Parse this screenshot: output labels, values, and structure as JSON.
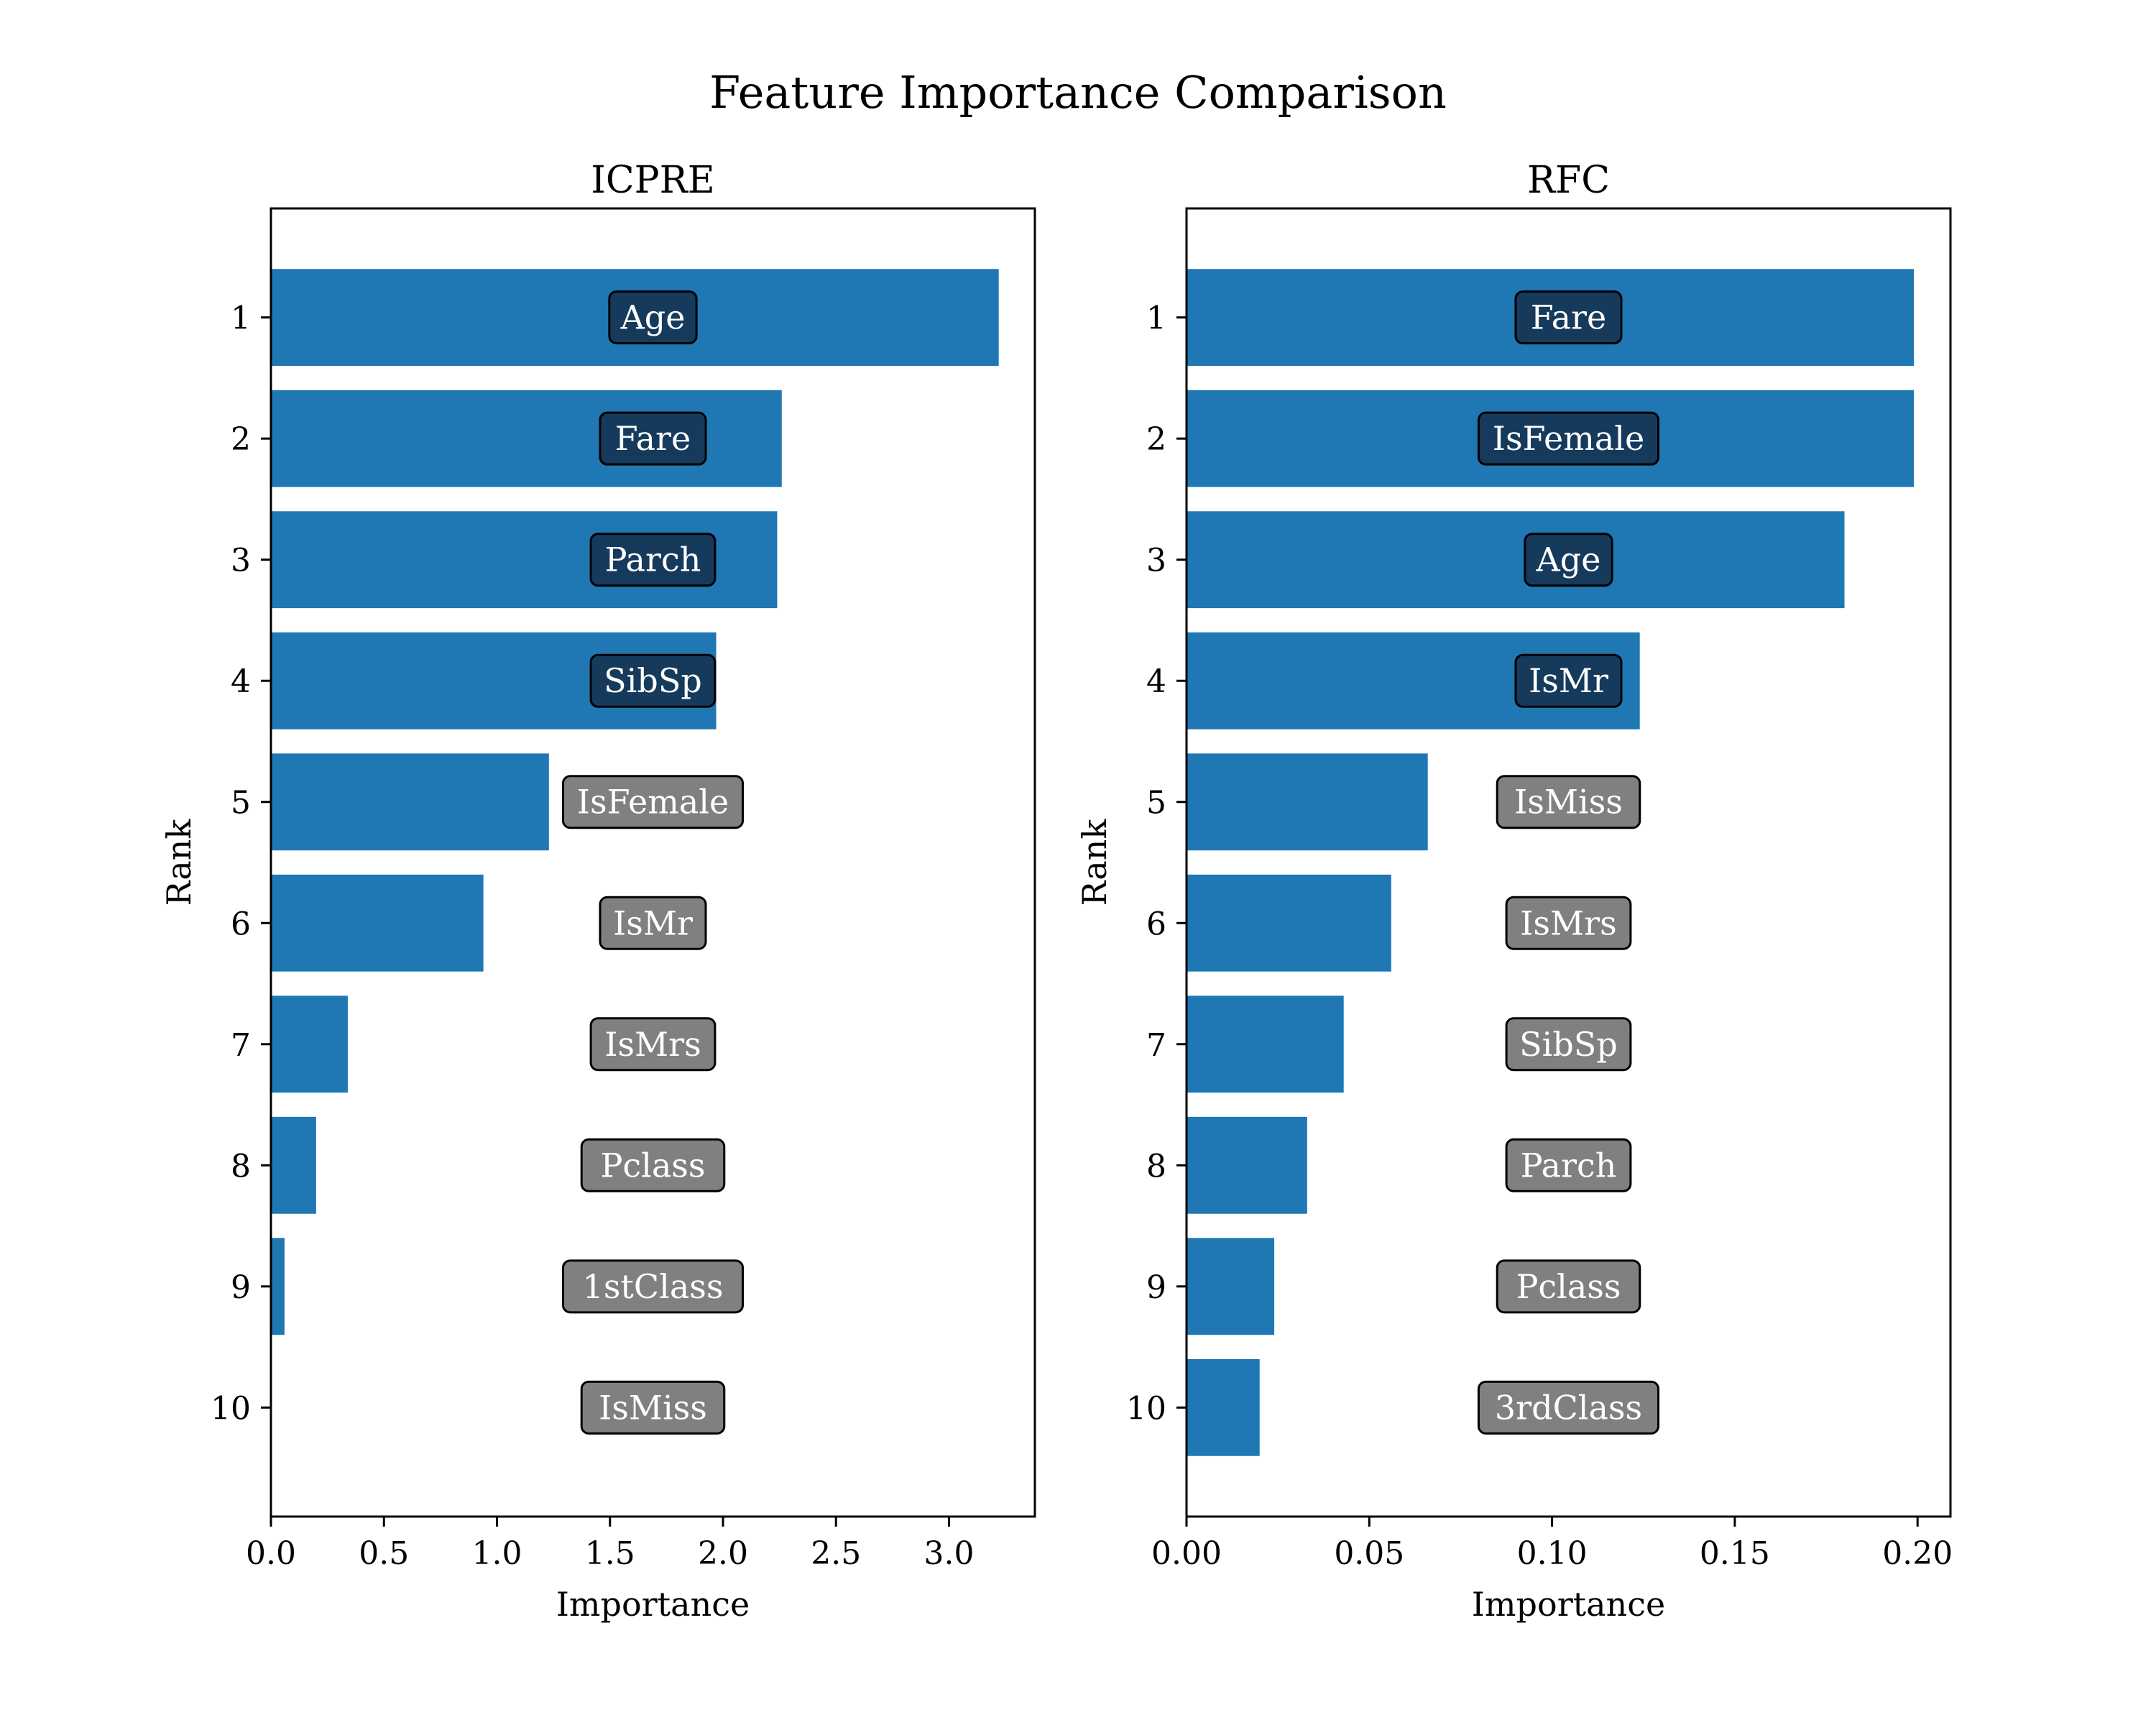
{
  "figure": {
    "title": "Feature Importance Comparison"
  },
  "colors": {
    "bar": "#1f77b4",
    "label_box_on_bar": "#163a5c",
    "label_box_off_bar": "#808080",
    "label_text": "#ffffff"
  },
  "chart_data": [
    {
      "type": "bar",
      "orientation": "horizontal",
      "title": "ICPRE",
      "xlabel": "Importance",
      "ylabel": "Rank",
      "categories": [
        "1",
        "2",
        "3",
        "4",
        "5",
        "6",
        "7",
        "8",
        "9",
        "10"
      ],
      "features": [
        "Age",
        "Fare",
        "Parch",
        "SibSp",
        "IsFemale",
        "IsMr",
        "IsMrs",
        "Pclass",
        "1stClass",
        "IsMiss"
      ],
      "values": [
        3.22,
        2.26,
        2.24,
        1.97,
        1.23,
        0.94,
        0.34,
        0.2,
        0.06,
        0.0
      ],
      "xlim": [
        0,
        3.38
      ],
      "xticks": [
        0.0,
        0.5,
        1.0,
        1.5,
        2.0,
        2.5,
        3.0
      ],
      "xtick_labels": [
        "0.0",
        "0.5",
        "1.0",
        "1.5",
        "2.0",
        "2.5",
        "3.0"
      ],
      "grid": false
    },
    {
      "type": "bar",
      "orientation": "horizontal",
      "title": "RFC",
      "xlabel": "Importance",
      "ylabel": "Rank",
      "categories": [
        "1",
        "2",
        "3",
        "4",
        "5",
        "6",
        "7",
        "8",
        "9",
        "10"
      ],
      "features": [
        "Fare",
        "IsFemale",
        "Age",
        "IsMr",
        "IsMiss",
        "IsMrs",
        "SibSp",
        "Parch",
        "Pclass",
        "3rdClass"
      ],
      "values": [
        0.199,
        0.199,
        0.18,
        0.124,
        0.066,
        0.056,
        0.043,
        0.033,
        0.024,
        0.02
      ],
      "xlim": [
        0,
        0.209
      ],
      "xticks": [
        0.0,
        0.05,
        0.1,
        0.15,
        0.2
      ],
      "xtick_labels": [
        "0.00",
        "0.05",
        "0.10",
        "0.15",
        "0.20"
      ],
      "grid": false
    }
  ]
}
